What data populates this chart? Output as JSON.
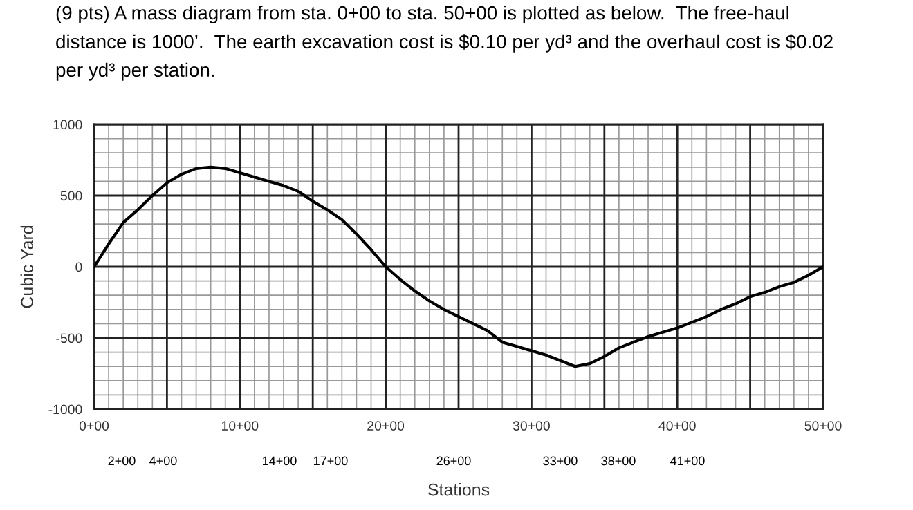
{
  "chart_data": {
    "type": "line",
    "title": "(9 pts) A mass diagram from sta. 0+00 to sta. 50+00 is plotted as below.  The free-haul\ndistance is 1000’.  The earth excavation cost is $0.10 per yd³ and the overhaul cost is $0.02\nper yd³ per station.",
    "xlabel": "Stations",
    "ylabel": "Cubic Yard",
    "categories": [
      "0+00",
      null,
      null,
      null,
      null,
      null,
      null,
      null,
      null,
      null,
      "10+00",
      null,
      null,
      null,
      null,
      null,
      null,
      null,
      null,
      null,
      "20+00",
      null,
      null,
      null,
      null,
      null,
      null,
      null,
      null,
      null,
      "30+00",
      null,
      null,
      null,
      null,
      null,
      null,
      null,
      null,
      null,
      "40+00",
      null,
      null,
      null,
      null,
      null,
      null,
      null,
      null,
      null,
      "50+00"
    ],
    "series": [
      {
        "color": "#000000",
        "values": [
          0,
          160,
          310,
          400,
          500,
          590,
          650,
          690,
          700,
          690,
          660,
          630,
          600,
          570,
          530,
          460,
          400,
          330,
          230,
          120,
          0,
          -90,
          -170,
          -240,
          -300,
          -350,
          -400,
          -450,
          -530,
          -560,
          -590,
          -620,
          -660,
          -700,
          -680,
          -630,
          -570,
          -530,
          -490,
          -460,
          -430,
          -390,
          -350,
          -300,
          -260,
          -210,
          -180,
          -140,
          -110,
          -60,
          0
        ]
      }
    ],
    "ylim": [
      -1000,
      1000
    ],
    "yticks": [
      -1000,
      -500,
      0,
      500,
      1000
    ],
    "grid": true,
    "marker": "none",
    "line_style": "solid",
    "annotations": [
      "2+00",
      "4+00",
      "14+00",
      "17+00",
      "26+00",
      "33+00",
      "38+00",
      "41+00"
    ]
  }
}
